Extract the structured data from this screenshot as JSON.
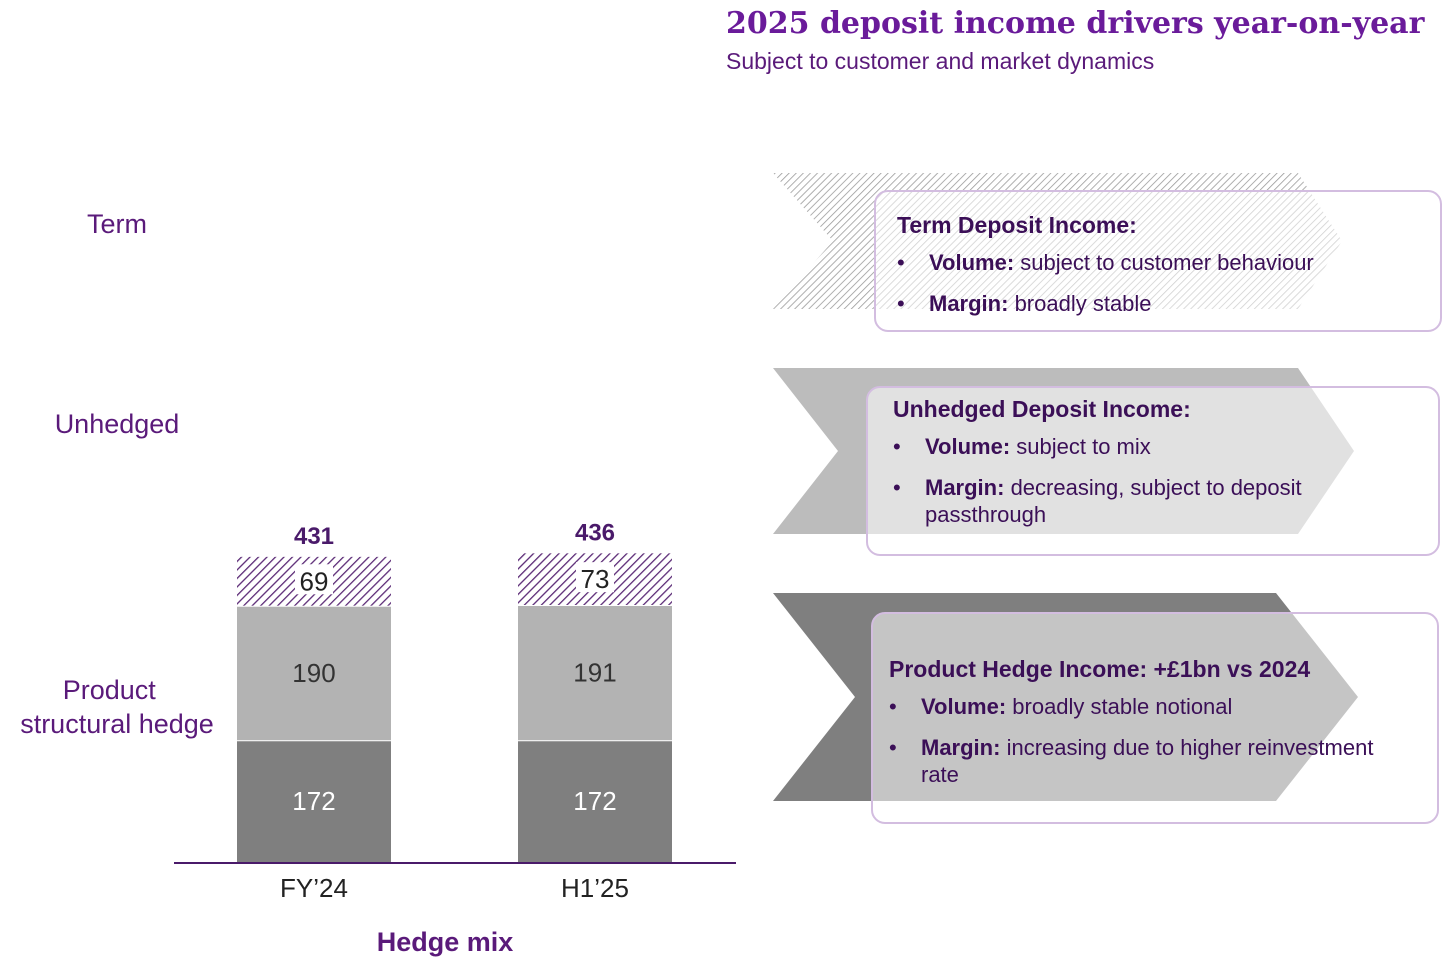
{
  "header": {
    "title": "2025 deposit income drivers year-on-year",
    "subtitle": "Subject to customer and market dynamics"
  },
  "colors": {
    "purple": "#5a1a7a",
    "term_hatch": "#5b2a76",
    "unhedged": "#b3b3b3",
    "hedge": "#7f7f7f",
    "chevron_hatch": "#9a9a9a"
  },
  "chart_data": {
    "type": "bar",
    "stacked": true,
    "categories": [
      "FY’24",
      "H1’25"
    ],
    "totals": [
      431,
      436
    ],
    "series": [
      {
        "name": "Product structural hedge",
        "values": [
          172,
          172
        ]
      },
      {
        "name": "Unhedged",
        "values": [
          190,
          191
        ]
      },
      {
        "name": "Term",
        "values": [
          69,
          73
        ]
      }
    ],
    "xlabel": "Hedge mix",
    "ylabel": ""
  },
  "panels": [
    {
      "heading": "Term Deposit Income:",
      "bullets": [
        {
          "bullet": "•",
          "label": "Volume:",
          "text": " subject to customer behaviour"
        },
        {
          "bullet": "•",
          "label": "Margin:",
          "text": " broadly stable"
        }
      ]
    },
    {
      "heading": "Unhedged Deposit Income:",
      "bullets": [
        {
          "bullet": "•",
          "label": "Volume:",
          "text": " subject to mix"
        },
        {
          "bullet": "•",
          "label": "Margin:",
          "text": " decreasing, subject to deposit passthrough"
        }
      ]
    },
    {
      "heading": "Product Hedge Income: +£1bn vs 2024",
      "bullets": [
        {
          "bullet": "•",
          "label": "Volume:",
          "text": " broadly stable notional"
        },
        {
          "bullet": "•",
          "label": "Margin:",
          "text": " increasing due to higher reinvestment rate"
        }
      ]
    }
  ]
}
